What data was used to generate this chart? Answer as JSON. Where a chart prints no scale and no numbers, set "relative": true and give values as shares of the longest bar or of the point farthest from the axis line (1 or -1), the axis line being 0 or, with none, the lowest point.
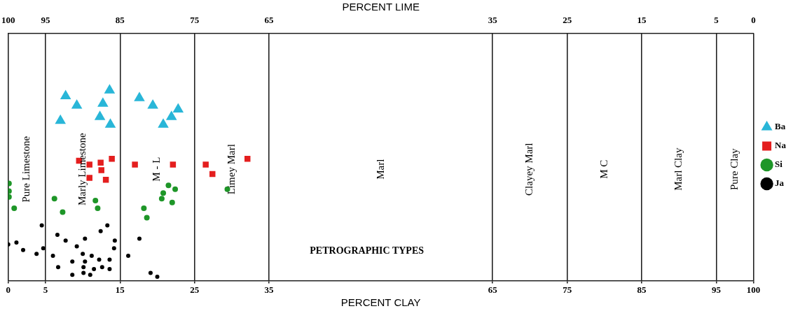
{
  "chart_data": {
    "type": "scatter",
    "relative": true,
    "xlabel": "PERCENT CLAY",
    "x2label": "PERCENT LIME",
    "xlim": [
      0,
      100
    ],
    "xticks": [
      0,
      5,
      15,
      25,
      35,
      65,
      75,
      85,
      95,
      100
    ],
    "x2lim": [
      100,
      0
    ],
    "x2ticks": [
      100,
      95,
      85,
      75,
      65,
      35,
      25,
      15,
      5,
      0
    ],
    "grid": "x",
    "legend": "right",
    "annotations": [
      "Pure Limestone",
      "Marly Limestone",
      "M - L",
      "Limey Marl",
      "Marl",
      "Clayey Marl",
      "M C",
      "Marl Clay",
      "Pure Clay",
      "PETROGRAPHIC TYPES"
    ],
    "series": [
      {
        "name": "Ba",
        "color": "#29b6d8",
        "marker": "triangle",
        "x": [
          7.7,
          9.2,
          7.0,
          13.6,
          12.7,
          12.3,
          13.7,
          17.6,
          19.4,
          22.8,
          21.9,
          20.8
        ],
        "values": [
          0.97,
          0.92,
          0.84,
          1.0,
          0.93,
          0.86,
          0.82,
          0.96,
          0.92,
          0.9,
          0.86,
          0.82
        ]
      },
      {
        "name": "Na",
        "color": "#e41e1e",
        "marker": "square",
        "x": [
          9.5,
          10.9,
          12.4,
          13.9,
          12.5,
          10.9,
          13.1,
          17.0,
          22.1,
          26.5,
          27.4,
          32.1
        ],
        "values": [
          0.63,
          0.61,
          0.62,
          0.64,
          0.58,
          0.54,
          0.53,
          0.61,
          0.61,
          0.61,
          0.56,
          0.64
        ]
      },
      {
        "name": "Si",
        "color": "#1e9628",
        "marker": "circle",
        "x": [
          0.1,
          0.1,
          0.1,
          0.8,
          6.2,
          7.3,
          11.7,
          12.0,
          21.5,
          22.4,
          20.8,
          20.6,
          22.0,
          18.2,
          18.6,
          29.4
        ],
        "values": [
          0.51,
          0.47,
          0.44,
          0.38,
          0.43,
          0.36,
          0.42,
          0.38,
          0.5,
          0.48,
          0.46,
          0.43,
          0.41,
          0.38,
          0.33,
          0.48
        ]
      },
      {
        "name": "Ja",
        "color": "#000000",
        "marker": "circle",
        "x": [
          4.5,
          0.0,
          1.1,
          2.0,
          3.8,
          4.7,
          6.6,
          7.7,
          6.0,
          9.2,
          10.3,
          10.0,
          11.2,
          12.4,
          13.3,
          14.3,
          14.2,
          6.7,
          8.6,
          10.3,
          12.2,
          13.6,
          10.1,
          11.5,
          12.6,
          13.6,
          8.6,
          10.1,
          11.0,
          17.6,
          16.1,
          19.1,
          20.0
        ],
        "values": [
          0.29,
          0.19,
          0.2,
          0.16,
          0.14,
          0.17,
          0.24,
          0.21,
          0.13,
          0.18,
          0.22,
          0.14,
          0.13,
          0.26,
          0.29,
          0.21,
          0.17,
          0.07,
          0.1,
          0.1,
          0.11,
          0.11,
          0.07,
          0.06,
          0.07,
          0.06,
          0.03,
          0.04,
          0.03,
          0.22,
          0.13,
          0.04,
          0.02
        ]
      }
    ]
  }
}
